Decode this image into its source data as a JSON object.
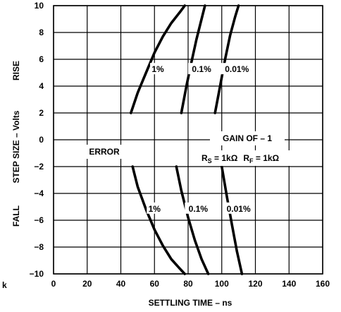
{
  "chart_data": {
    "type": "line",
    "xlabel": "SETTLING TIME – ns",
    "ylabel": "STEP SIZE – Volts",
    "xlim": [
      0,
      160
    ],
    "ylim": [
      -10,
      10
    ],
    "x_ticks": [
      "0",
      "20",
      "40",
      "60",
      "80",
      "100",
      "120",
      "140",
      "160"
    ],
    "y_ticks": [
      "10",
      "8",
      "6",
      "4",
      "2",
      "0",
      "−2",
      "−4",
      "−6",
      "−8",
      "−10"
    ],
    "grid": true,
    "region_labels": {
      "rise": "RISE",
      "fall": "FALL"
    },
    "stray_mark": "k",
    "annotations": {
      "error": "ERROR",
      "gain": "GAIN OF – 1",
      "resistors": "RS = 1kΩ   RF = 1kΩ",
      "rs_main": "R",
      "rs_sub": "S",
      "rs_val": " = 1kΩ",
      "rf_main": "R",
      "rf_sub": "F",
      "rf_val": " = 1kΩ"
    },
    "series": [
      {
        "name": "1%",
        "segment": "rise",
        "x": [
          46,
          50,
          55,
          60,
          65,
          70,
          75,
          78
        ],
        "y": [
          2,
          3.5,
          5,
          6.5,
          7.7,
          8.7,
          9.5,
          10
        ]
      },
      {
        "name": "0.1%",
        "segment": "rise",
        "x": [
          76,
          79,
          82,
          85,
          88,
          90
        ],
        "y": [
          2,
          4,
          5.8,
          7.5,
          9,
          10
        ]
      },
      {
        "name": "0.01%",
        "segment": "rise",
        "x": [
          96,
          99,
          102,
          105,
          108,
          110
        ],
        "y": [
          2,
          4,
          6,
          7.8,
          9.2,
          10
        ]
      },
      {
        "name": "1%",
        "segment": "fall",
        "x": [
          47,
          50,
          55,
          60,
          65,
          70,
          75,
          78
        ],
        "y": [
          -2,
          -3.5,
          -5.2,
          -6.7,
          -7.9,
          -8.9,
          -9.6,
          -10
        ]
      },
      {
        "name": "0.1%",
        "segment": "fall",
        "x": [
          73,
          76,
          80,
          84,
          88,
          92
        ],
        "y": [
          -2,
          -3.8,
          -5.8,
          -7.5,
          -8.9,
          -10
        ]
      },
      {
        "name": "0.01%",
        "segment": "fall",
        "x": [
          100,
          103,
          106,
          109,
          112
        ],
        "y": [
          -2,
          -4.2,
          -6.3,
          -8.3,
          -10
        ]
      }
    ],
    "series_labels": [
      {
        "text": "1%",
        "x": 62,
        "y": 5.2
      },
      {
        "text": "0.1%",
        "x": 88,
        "y": 5.2
      },
      {
        "text": "0.01%",
        "x": 109,
        "y": 5.2
      },
      {
        "text": "1%",
        "x": 60,
        "y": -5.2
      },
      {
        "text": "0.1%",
        "x": 86,
        "y": -5.2
      },
      {
        "text": "0.01%",
        "x": 110,
        "y": -5.2
      }
    ]
  }
}
